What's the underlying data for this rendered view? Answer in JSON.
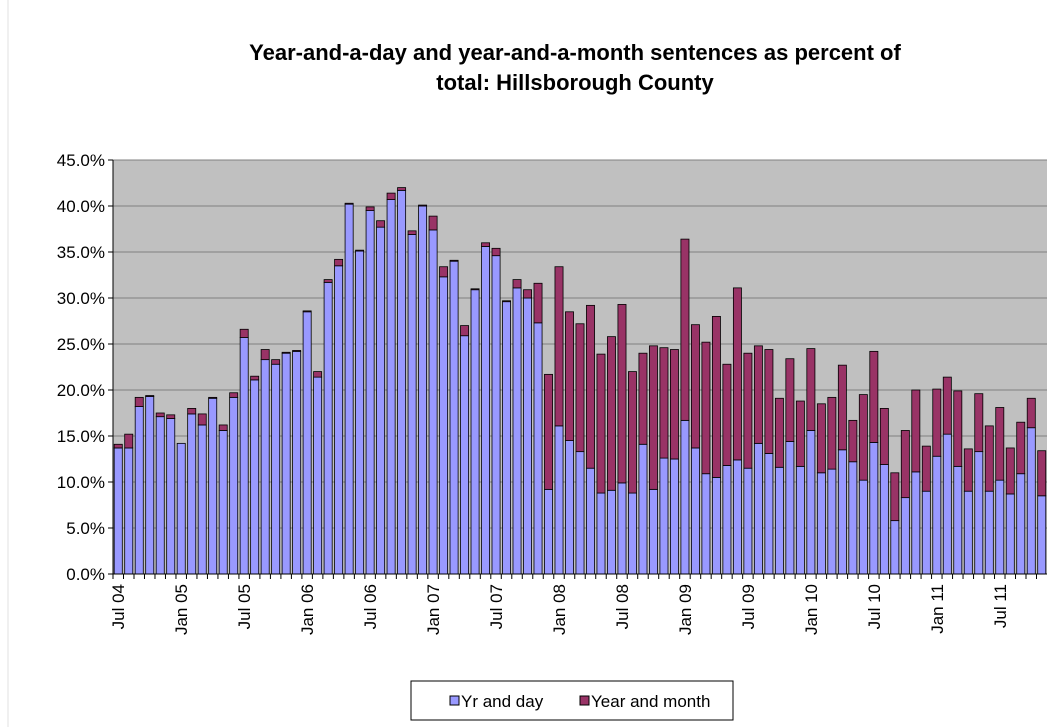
{
  "chart_data": {
    "type": "stacked_bar",
    "title": "Year-and-a-day and year-and-a-month sentences as percent of total:  Hillsborough County",
    "categories": [
      "Jul 04",
      null,
      null,
      null,
      null,
      null,
      "Jan 05",
      null,
      null,
      null,
      null,
      null,
      "Jul 05",
      null,
      null,
      null,
      null,
      null,
      "Jan 06",
      null,
      null,
      null,
      null,
      null,
      "Jul 06",
      null,
      null,
      null,
      null,
      null,
      "Jan 07",
      null,
      null,
      null,
      null,
      null,
      "Jul 07",
      null,
      null,
      null,
      null,
      null,
      "Jan 08",
      null,
      null,
      null,
      null,
      null,
      "Jul 08",
      null,
      null,
      null,
      null,
      null,
      "Jan 09",
      null,
      null,
      null,
      null,
      null,
      "Jul 09",
      null,
      null,
      null,
      null,
      null,
      "Jan 10",
      null,
      null,
      null,
      null,
      null,
      "Jul 10",
      null,
      null,
      null,
      null,
      null,
      "Jan 11",
      null,
      null,
      null,
      null,
      null,
      "Jul 11",
      null,
      null,
      null,
      null
    ],
    "series": [
      {
        "name": "Yr and day",
        "color": "#9999ff",
        "values": [
          13.7,
          13.7,
          18.2,
          19.3,
          17.1,
          16.9,
          14.2,
          17.4,
          16.2,
          19.1,
          15.6,
          19.2,
          25.7,
          21.1,
          23.3,
          22.8,
          24.0,
          24.2,
          28.5,
          21.4,
          31.7,
          33.5,
          40.2,
          35.1,
          39.5,
          37.7,
          40.7,
          41.7,
          36.9,
          40.0,
          37.4,
          32.3,
          34.0,
          25.9,
          30.9,
          35.6,
          34.6,
          29.6,
          31.1,
          30.0,
          27.3,
          9.2,
          16.1,
          14.5,
          13.3,
          11.5,
          8.8,
          9.1,
          9.9,
          8.8,
          14.1,
          9.2,
          12.6,
          12.5,
          16.7,
          13.7,
          10.9,
          10.5,
          11.8,
          12.4,
          11.5,
          14.2,
          13.1,
          11.6,
          14.4,
          11.7,
          15.6,
          11.0,
          11.4,
          13.5,
          12.2,
          10.2,
          14.3,
          11.9,
          5.8,
          8.3,
          11.1,
          9.0,
          12.8,
          15.2,
          11.7,
          9.0,
          13.3,
          9.0,
          10.2,
          8.7,
          10.9,
          15.9,
          8.5
        ]
      },
      {
        "name": "Year and month",
        "color": "#993366",
        "values": [
          0.4,
          1.5,
          1.0,
          0.1,
          0.4,
          0.4,
          0,
          0.6,
          1.2,
          0.1,
          0.6,
          0.5,
          0.9,
          0.4,
          1.1,
          0.5,
          0.1,
          0.1,
          0.1,
          0.6,
          0.3,
          0.7,
          0.1,
          0.1,
          0.4,
          0.7,
          0.7,
          0.3,
          0.4,
          0.1,
          1.5,
          1.1,
          0.1,
          1.1,
          0.1,
          0.4,
          0.8,
          0.1,
          0.9,
          0.9,
          4.3,
          12.5,
          17.3,
          14.0,
          13.9,
          17.7,
          15.1,
          16.7,
          19.4,
          13.2,
          9.9,
          15.6,
          12.0,
          11.9,
          19.7,
          13.4,
          14.3,
          17.5,
          11.0,
          18.7,
          12.5,
          10.6,
          11.3,
          7.5,
          9.0,
          7.1,
          8.9,
          7.5,
          7.8,
          9.2,
          4.5,
          9.3,
          9.9,
          6.1,
          5.2,
          7.3,
          8.9,
          4.9,
          7.3,
          6.2,
          8.2,
          4.6,
          6.3,
          7.1,
          7.9,
          5.0,
          5.6,
          3.2,
          4.9
        ]
      }
    ],
    "ylim": [
      0,
      45
    ],
    "yticks": [
      {
        "value": 0,
        "label": "0.0%"
      },
      {
        "value": 5,
        "label": "5.0%"
      },
      {
        "value": 10,
        "label": "10.0%"
      },
      {
        "value": 15,
        "label": "15.0%"
      },
      {
        "value": 20,
        "label": "20.0%"
      },
      {
        "value": 25,
        "label": "25.0%"
      },
      {
        "value": 30,
        "label": "30.0%"
      },
      {
        "value": 35,
        "label": "35.0%"
      },
      {
        "value": 40,
        "label": "40.0%"
      },
      {
        "value": 45,
        "label": "45.0%"
      }
    ],
    "grid": true,
    "legend": "bottom"
  }
}
